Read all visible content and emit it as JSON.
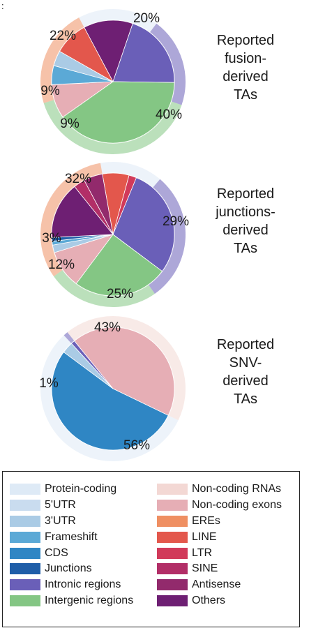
{
  "corner_mark": ":",
  "chart_data": [
    {
      "type": "pie",
      "title": [
        "Reported",
        "fusion-",
        "derived",
        "TAs"
      ],
      "outer_ring": [
        {
          "category": "Protein-coding",
          "value": 18
        },
        {
          "category": "Intronic regions",
          "value": 20
        },
        {
          "category": "Intergenic regions",
          "value": 40
        },
        {
          "category": "EREs",
          "value": 22
        }
      ],
      "slices": [
        {
          "category": "Others",
          "value": 13
        },
        {
          "category": "Intronic regions",
          "value": 20
        },
        {
          "category": "Intergenic regions",
          "value": 40
        },
        {
          "category": "Non-coding exons",
          "value": 9
        },
        {
          "category": "Frameshift",
          "value": 5
        },
        {
          "category": "3'UTR",
          "value": 4
        },
        {
          "category": "LINE",
          "value": 9
        }
      ],
      "labels": [
        "20%",
        "22%",
        "9%",
        "9%",
        "40%"
      ]
    },
    {
      "type": "pie",
      "title": [
        "Reported",
        "junctions-",
        "derived",
        "TAs"
      ],
      "outer_ring": [
        {
          "category": "Protein-coding",
          "value": 14
        },
        {
          "category": "Intronic regions",
          "value": 29
        },
        {
          "category": "Intergenic regions",
          "value": 25
        },
        {
          "category": "EREs",
          "value": 32
        }
      ],
      "slices": [
        {
          "category": "LINE",
          "value": 7
        },
        {
          "category": "LTR",
          "value": 2
        },
        {
          "category": "Intronic regions",
          "value": 29
        },
        {
          "category": "Intergenic regions",
          "value": 25
        },
        {
          "category": "Non-coding exons",
          "value": 10
        },
        {
          "category": "3'UTR",
          "value": 2
        },
        {
          "category": "Frameshift",
          "value": 1
        },
        {
          "category": "Junctions",
          "value": 1
        },
        {
          "category": "Others",
          "value": 15
        },
        {
          "category": "SINE",
          "value": 3
        },
        {
          "category": "Antisense",
          "value": 5
        }
      ],
      "labels": [
        "32%",
        "29%",
        "3%",
        "12%",
        "25%"
      ]
    },
    {
      "type": "pie",
      "title": [
        "Reported",
        "SNV-",
        "derived",
        "TAs"
      ],
      "outer_ring": [
        {
          "category": "Non-coding RNAs",
          "value": 43
        },
        {
          "category": "Protein-coding",
          "value": 56
        },
        {
          "category": "Intronic regions",
          "value": 1
        }
      ],
      "slices": [
        {
          "category": "Non-coding exons",
          "value": 43
        },
        {
          "category": "CDS",
          "value": 53
        },
        {
          "category": "3'UTR",
          "value": 3
        },
        {
          "category": "Intronic regions",
          "value": 1
        }
      ],
      "labels": [
        "43%",
        "1%",
        "56%"
      ]
    }
  ],
  "legend": {
    "left": [
      {
        "label": "Protein-coding",
        "color": "#deeaf6"
      },
      {
        "label": "5'UTR",
        "color": "#c9dcef"
      },
      {
        "label": "3'UTR",
        "color": "#aacbe5"
      },
      {
        "label": "Frameshift",
        "color": "#5ba9d6"
      },
      {
        "label": "CDS",
        "color": "#2f86c4"
      },
      {
        "label": "Junctions",
        "color": "#1f5ea8"
      },
      {
        "label": "Intronic regions",
        "color": "#6a5fb8"
      },
      {
        "label": "Intergenic regions",
        "color": "#84c684"
      }
    ],
    "right": [
      {
        "label": "Non-coding RNAs",
        "color": "#f3d8d4"
      },
      {
        "label": "Non-coding exons",
        "color": "#e6aeb5"
      },
      {
        "label": "EREs",
        "color": "#ef8f62"
      },
      {
        "label": "LINE",
        "color": "#e3574c"
      },
      {
        "label": "LTR",
        "color": "#d13a5a"
      },
      {
        "label": "SINE",
        "color": "#b22e67"
      },
      {
        "label": "Antisense",
        "color": "#922a6c"
      },
      {
        "label": "Others",
        "color": "#6e1f73"
      }
    ]
  }
}
